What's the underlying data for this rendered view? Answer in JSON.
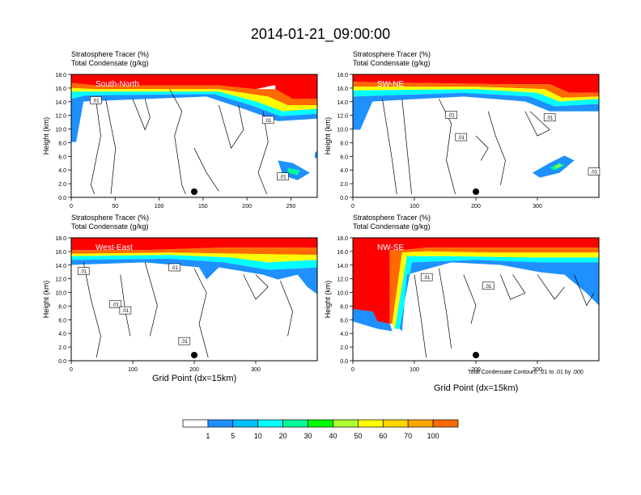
{
  "title": "2014-01-21_09:00:00",
  "panels": [
    {
      "id": "south-north",
      "field1": "Stratosphere Tracer   (%)",
      "field2": "Total Condensate   (g/kg)",
      "label": "South-North",
      "xticks": [
        "0",
        "50",
        "100",
        "150",
        "200",
        "250"
      ],
      "xmax": 280,
      "ylabel": "Height (km)",
      "yticks": [
        "0.0",
        "2.0",
        "4.0",
        "6.0",
        "8.0",
        "10.0",
        "12.0",
        "14.0",
        "16.0",
        "18.0"
      ],
      "contour_labels": [
        ".01",
        ".01",
        ".01"
      ],
      "marker_x": 140
    },
    {
      "id": "sw-ne",
      "field1": "Stratosphere Tracer   (%)",
      "field2": "Total Condensate   (g/kg)",
      "label": "SW-NE",
      "xticks": [
        "0",
        "100",
        "200",
        "300"
      ],
      "xmax": 400,
      "ylabel": "Height (km)",
      "yticks": [
        "0.0",
        "2.0",
        "4.0",
        "6.0",
        "8.0",
        "10.0",
        "12.0",
        "14.0",
        "16.0",
        "18.0"
      ],
      "contour_labels": [
        ".01",
        ".01",
        ".01",
        ".01"
      ],
      "marker_x": 200
    },
    {
      "id": "west-east",
      "field1": "Stratosphere Tracer   (%)",
      "field2": "Total Condensate   (g/kg)",
      "label": "West-East",
      "xticks": [
        "0",
        "100",
        "200",
        "300"
      ],
      "xmax": 400,
      "ylabel": "Height (km)",
      "yticks": [
        "0.0",
        "2.0",
        "4.0",
        "6.0",
        "8.0",
        "10.0",
        "12.0",
        "14.0",
        "16.0",
        "18.0"
      ],
      "contour_labels": [
        ".01",
        ".01",
        ".01",
        ".01",
        ".01"
      ],
      "marker_x": 200
    },
    {
      "id": "nw-se",
      "field1": "Stratosphere Tracer   (%)",
      "field2": "Total Condensate   (g/kg)",
      "label": "NW-SE",
      "xticks": [
        "0",
        "100",
        "200",
        "300"
      ],
      "xmax": 400,
      "ylabel": "Height (km)",
      "yticks": [
        "0.0",
        "2.0",
        "4.0",
        "6.0",
        "8.0",
        "10.0",
        "12.0",
        "14.0",
        "16.0",
        "18.0"
      ],
      "contour_labels": [
        ".01",
        ".01"
      ],
      "marker_x": 200
    }
  ],
  "xlabel": "Grid Point (dx=15km)",
  "contour_note": "Total Condensate Contours: .01 to .01 by .000",
  "colorbar": {
    "levels": [
      "1",
      "5",
      "10",
      "20",
      "30",
      "40",
      "50",
      "60",
      "70",
      "100"
    ],
    "colors": [
      "#ffffff",
      "#1e90ff",
      "#00bfff",
      "#00ffff",
      "#00fa9a",
      "#00ff00",
      "#adff2f",
      "#ffff00",
      "#ffd700",
      "#ffa500",
      "#ff6a00",
      "#ff0000"
    ]
  },
  "chart_data": [
    {
      "type": "heatmap",
      "panel": "South-North",
      "ylabel": "Height (km)",
      "ylim": [
        0,
        18
      ],
      "xlim": [
        0,
        280
      ],
      "stratosphere_tracer_pct": {
        "top_red_layer_km": [
          16.5,
          18
        ],
        "tropopause_km": [
          15,
          16.8
        ]
      },
      "total_condensate_contour_gkg": 0.01
    },
    {
      "type": "heatmap",
      "panel": "SW-NE",
      "ylabel": "Height (km)",
      "ylim": [
        0,
        18
      ],
      "xlim": [
        0,
        400
      ],
      "stratosphere_tracer_pct": {
        "top_red_layer_km": [
          16,
          18
        ],
        "tropopause_km": [
          13,
          16.5
        ]
      },
      "total_condensate_contour_gkg": 0.01
    },
    {
      "type": "heatmap",
      "panel": "West-East",
      "xlabel": "Grid Point (dx=15km)",
      "ylabel": "Height (km)",
      "ylim": [
        0,
        18
      ],
      "xlim": [
        0,
        400
      ],
      "stratosphere_tracer_pct": {
        "top_red_layer_km": [
          16.5,
          18
        ],
        "tropopause_km": [
          11,
          16.5
        ]
      },
      "total_condensate_contour_gkg": 0.01
    },
    {
      "type": "heatmap",
      "panel": "NW-SE",
      "xlabel": "Grid Point (dx=15km)",
      "ylabel": "Height (km)",
      "ylim": [
        0,
        18
      ],
      "xlim": [
        0,
        400
      ],
      "stratosphere_tracer_pct": {
        "top_red_layer_km": [
          16.5,
          18
        ],
        "intrusion_grid_points": [
          10,
          40
        ],
        "intrusion_bottom_km": 5
      },
      "total_condensate_contour_gkg": 0.01
    }
  ]
}
